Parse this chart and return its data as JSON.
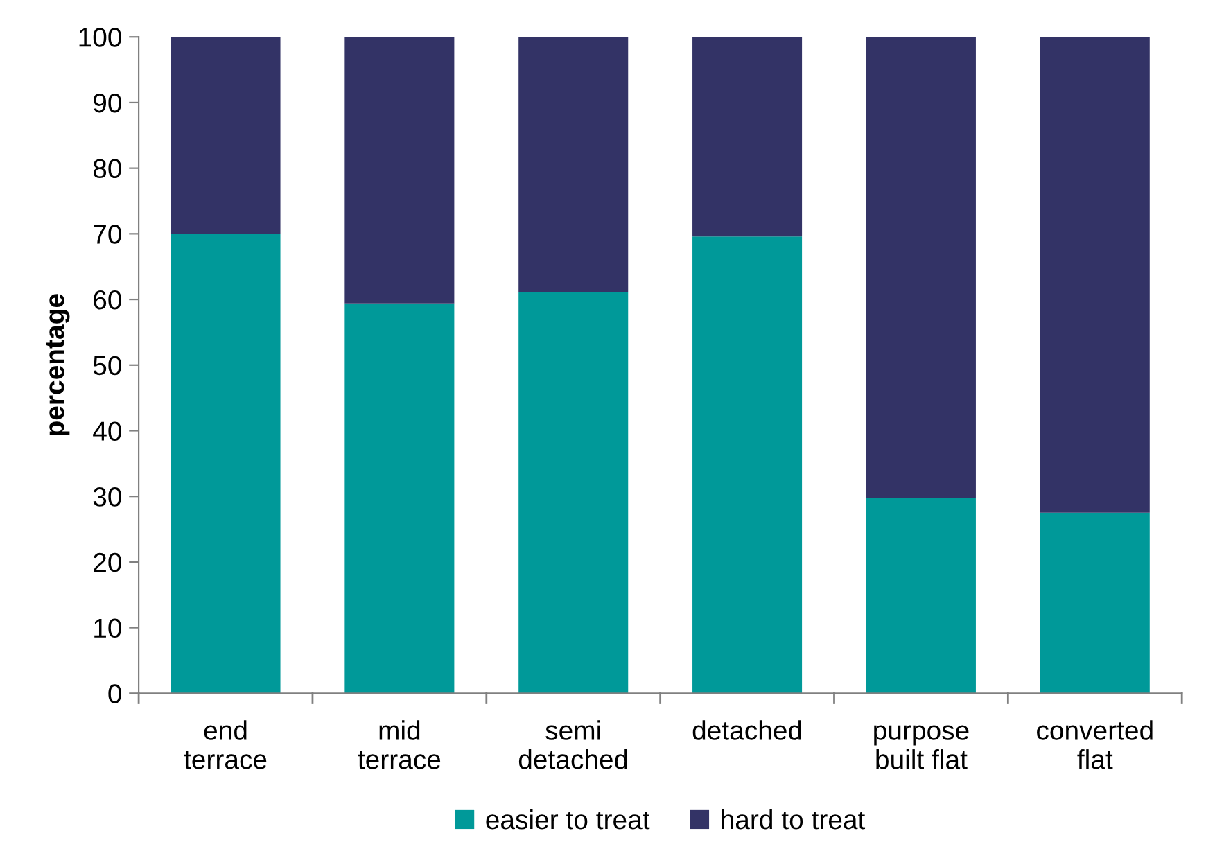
{
  "chart_data": {
    "type": "bar",
    "stacked": true,
    "ylabel": "percentage",
    "categories": [
      "end\nterrace",
      "mid\nterrace",
      "semi\ndetached",
      "detached",
      "purpose\nbuilt flat",
      "converted\nflat"
    ],
    "series": [
      {
        "name": "easier to treat",
        "color": "#009999",
        "values": [
          70,
          59.4,
          61.1,
          69.6,
          29.8,
          27.5
        ]
      },
      {
        "name": "hard to treat",
        "color": "#333366",
        "values": [
          30,
          40.6,
          38.9,
          30.4,
          70.2,
          72.5
        ]
      }
    ],
    "ylim": [
      0,
      100
    ],
    "yticks": [
      0,
      10,
      20,
      30,
      40,
      50,
      60,
      70,
      80,
      90,
      100
    ],
    "grid": false,
    "legend": "bottom"
  }
}
